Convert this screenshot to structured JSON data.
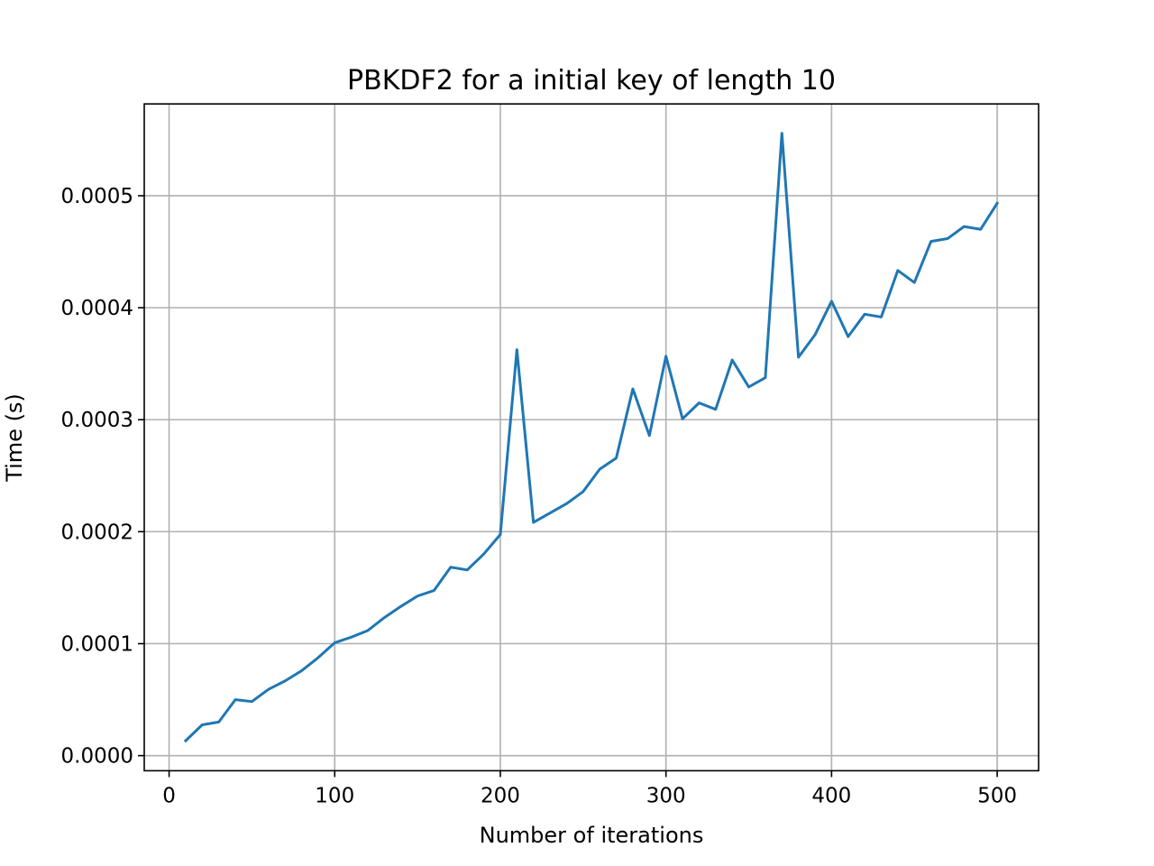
{
  "chart_data": {
    "type": "line",
    "title": "PBKDF2 for a initial key of length 10",
    "xlabel": "Number of iterations",
    "ylabel": "Time (s)",
    "xlim": [
      -15,
      525
    ],
    "ylim": [
      -1.35e-05,
      0.000582
    ],
    "grid": true,
    "x_ticks": [
      0,
      100,
      200,
      300,
      400,
      500
    ],
    "x_tick_labels": [
      "0",
      "100",
      "200",
      "300",
      "400",
      "500"
    ],
    "y_ticks": [
      0,
      0.0001,
      0.0002,
      0.0003,
      0.0004,
      0.0005
    ],
    "y_tick_labels": [
      "0.0000",
      "0.0001",
      "0.0002",
      "0.0003",
      "0.0004",
      "0.0005"
    ],
    "series": [
      {
        "color": "#1f77b4",
        "x": [
          10,
          20,
          30,
          40,
          50,
          60,
          70,
          80,
          90,
          100,
          110,
          120,
          130,
          140,
          150,
          160,
          170,
          180,
          190,
          200,
          210,
          220,
          230,
          240,
          250,
          260,
          270,
          280,
          290,
          300,
          310,
          320,
          330,
          340,
          350,
          360,
          370,
          380,
          390,
          400,
          410,
          420,
          430,
          440,
          450,
          460,
          470,
          480,
          490,
          500
        ],
        "y": [
          1.33e-05,
          2.75e-05,
          3e-05,
          5e-05,
          4.83e-05,
          5.92e-05,
          6.67e-05,
          7.58e-05,
          8.75e-05,
          0.0001008,
          0.0001058,
          0.0001117,
          0.0001233,
          0.0001333,
          0.0001425,
          0.0001475,
          0.0001683,
          0.0001658,
          0.00018,
          0.0001975,
          0.0003625,
          0.0002083,
          0.0002167,
          0.000225,
          0.0002358,
          0.0002558,
          0.0002658,
          0.0003275,
          0.0002858,
          0.0003567,
          0.0003008,
          0.000315,
          0.0003092,
          0.0003533,
          0.0003292,
          0.0003375,
          0.0005558,
          0.0003558,
          0.0003758,
          0.0004058,
          0.0003742,
          0.0003942,
          0.0003917,
          0.0004333,
          0.0004225,
          0.0004592,
          0.0004617,
          0.0004725,
          0.00047,
          0.0004933
        ]
      }
    ]
  }
}
